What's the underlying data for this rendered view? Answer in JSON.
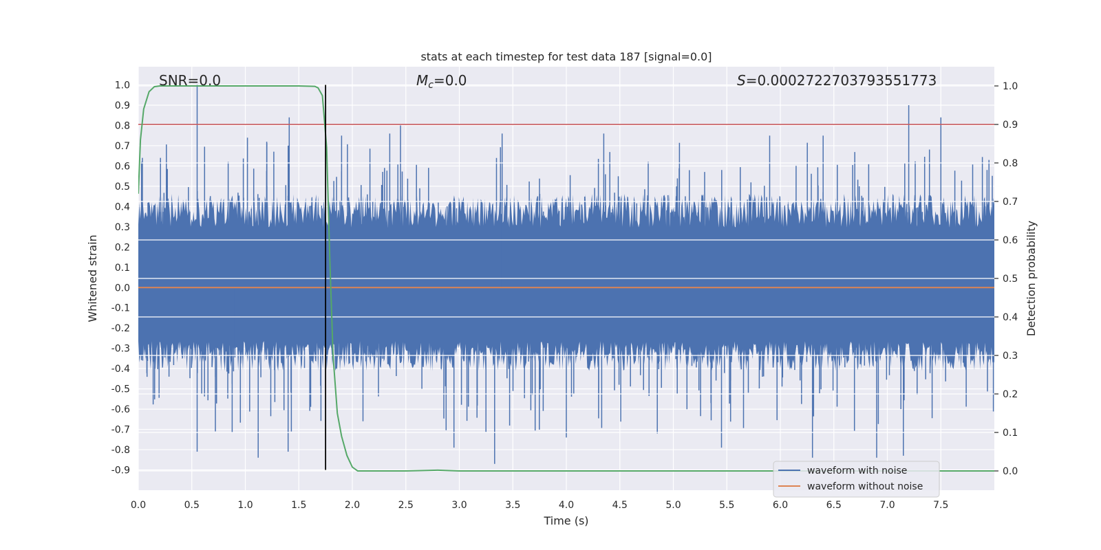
{
  "chart_data": {
    "type": "line",
    "title": "stats at each timestep for test data 187 [signal=0.0]",
    "xlabel": "Time (s)",
    "ylabel_left": "Whitened strain",
    "ylabel_right": "Detection probability",
    "xlim": [
      0.0,
      8.0
    ],
    "ylim_left": [
      -1.0,
      1.09
    ],
    "ylim_right": [
      -0.05,
      1.05
    ],
    "x_ticks": [
      "0.0",
      "0.5",
      "1.0",
      "1.5",
      "2.0",
      "2.5",
      "3.0",
      "3.5",
      "4.0",
      "4.5",
      "5.0",
      "5.5",
      "6.0",
      "6.5",
      "7.0",
      "7.5"
    ],
    "y_ticks_left": [
      "1.0",
      "0.9",
      "0.8",
      "0.7",
      "0.6",
      "0.5",
      "0.4",
      "0.3",
      "0.2",
      "0.1",
      "0.0",
      "-0.1",
      "-0.2",
      "-0.3",
      "-0.4",
      "-0.5",
      "-0.6",
      "-0.7",
      "-0.8",
      "-0.9"
    ],
    "y_ticks_right": [
      "1.0",
      "0.9",
      "0.8",
      "0.7",
      "0.6",
      "0.5",
      "0.4",
      "0.3",
      "0.2",
      "0.1",
      "0.0"
    ],
    "annotations": {
      "snr": "SNR=0.0",
      "mc_symbol": "M",
      "mc_sub": "c",
      "mc_value": "=0.0",
      "s_symbol": "S",
      "s_value": "=0.0002722703793551773"
    },
    "series": [
      {
        "name": "waveform with noise",
        "axis": "left",
        "color": "#4c72b0",
        "style": "noise",
        "typical_envelope": [
          -0.33,
          0.37
        ],
        "peaks": [
          [
            0.03,
            0.62
          ],
          [
            0.55,
            1.0
          ],
          [
            0.84,
            0.62
          ],
          [
            1.02,
            0.74
          ],
          [
            1.2,
            0.72
          ],
          [
            1.41,
            0.84
          ],
          [
            1.9,
            0.75
          ],
          [
            2.35,
            0.76
          ],
          [
            2.45,
            0.8
          ],
          [
            3.4,
            0.76
          ],
          [
            4.35,
            0.76
          ],
          [
            5.9,
            0.75
          ],
          [
            6.4,
            0.75
          ],
          [
            7.2,
            0.9
          ],
          [
            7.5,
            0.84
          ],
          [
            7.95,
            0.63
          ]
        ],
        "troughs": [
          [
            0.55,
            -0.81
          ],
          [
            0.72,
            -0.71
          ],
          [
            1.12,
            -0.84
          ],
          [
            1.4,
            -0.81
          ],
          [
            2.1,
            -0.66
          ],
          [
            2.95,
            -0.79
          ],
          [
            3.33,
            -0.87
          ],
          [
            4.0,
            -0.74
          ],
          [
            4.85,
            -0.72
          ],
          [
            5.45,
            -0.79
          ],
          [
            6.3,
            -0.84
          ],
          [
            6.9,
            -0.84
          ],
          [
            7.15,
            -0.83
          ]
        ]
      },
      {
        "name": "waveform without noise",
        "axis": "left",
        "color": "#dd8452",
        "x": [
          0.0,
          8.0
        ],
        "y": [
          0.0,
          0.0
        ]
      },
      {
        "name": "",
        "axis": "right",
        "color": "#55a868",
        "x": [
          0.0,
          0.02,
          0.05,
          0.1,
          0.15,
          0.2,
          0.5,
          1.0,
          1.5,
          1.65,
          1.68,
          1.72,
          1.76,
          1.79,
          1.82,
          1.86,
          1.9,
          1.95,
          2.0,
          2.05,
          2.1,
          2.5,
          2.8,
          3.0,
          4.0,
          8.0
        ],
        "y": [
          0.72,
          0.86,
          0.94,
          0.985,
          0.998,
          1.0,
          1.0,
          1.0,
          1.0,
          0.999,
          0.995,
          0.975,
          0.84,
          0.55,
          0.3,
          0.15,
          0.09,
          0.04,
          0.01,
          0.0,
          0.0,
          0.0,
          0.002,
          0.0,
          0.0,
          0.0
        ]
      }
    ],
    "threshold_line": {
      "axis": "right",
      "value": 0.9,
      "color": "#c44e52"
    },
    "marker_line": {
      "axis": "left",
      "x": 1.75,
      "y_range": [
        -0.9,
        1.0
      ],
      "color": "#000000"
    },
    "legend": {
      "placement": "lower-right",
      "entries": [
        "waveform with noise",
        "waveform without noise"
      ]
    },
    "grid": true,
    "background": "#eaeaf2"
  }
}
